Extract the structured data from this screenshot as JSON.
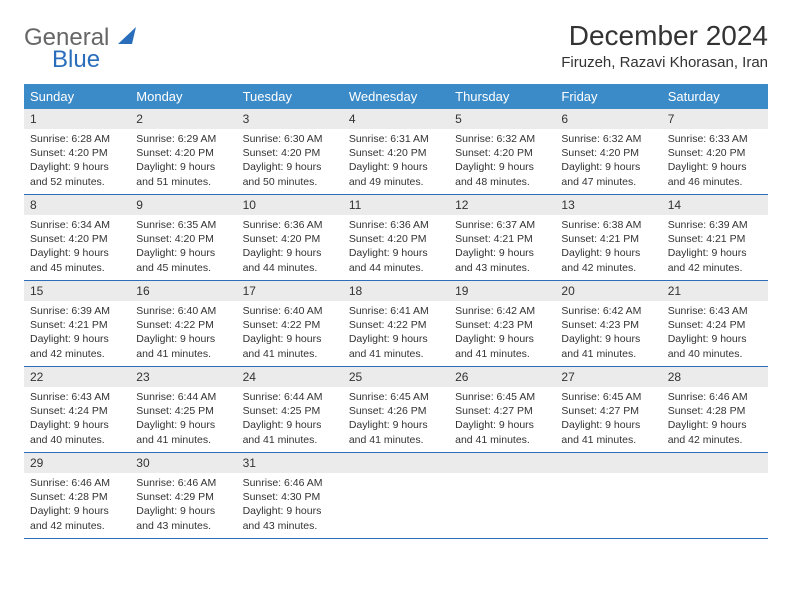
{
  "logo": {
    "text1": "General",
    "text2": "Blue",
    "sail_color": "#2a6ebb"
  },
  "title": "December 2024",
  "location": "Firuzeh, Razavi Khorasan, Iran",
  "day_headers": [
    "Sunday",
    "Monday",
    "Tuesday",
    "Wednesday",
    "Thursday",
    "Friday",
    "Saturday"
  ],
  "colors": {
    "header_bg": "#3b8bc9",
    "header_text": "#ffffff",
    "daynum_bg": "#ebebeb",
    "border": "#2a6ebb",
    "text": "#333333",
    "background": "#ffffff"
  },
  "weeks": [
    [
      {
        "n": "1",
        "sr": "Sunrise: 6:28 AM",
        "ss": "Sunset: 4:20 PM",
        "dl1": "Daylight: 9 hours",
        "dl2": "and 52 minutes."
      },
      {
        "n": "2",
        "sr": "Sunrise: 6:29 AM",
        "ss": "Sunset: 4:20 PM",
        "dl1": "Daylight: 9 hours",
        "dl2": "and 51 minutes."
      },
      {
        "n": "3",
        "sr": "Sunrise: 6:30 AM",
        "ss": "Sunset: 4:20 PM",
        "dl1": "Daylight: 9 hours",
        "dl2": "and 50 minutes."
      },
      {
        "n": "4",
        "sr": "Sunrise: 6:31 AM",
        "ss": "Sunset: 4:20 PM",
        "dl1": "Daylight: 9 hours",
        "dl2": "and 49 minutes."
      },
      {
        "n": "5",
        "sr": "Sunrise: 6:32 AM",
        "ss": "Sunset: 4:20 PM",
        "dl1": "Daylight: 9 hours",
        "dl2": "and 48 minutes."
      },
      {
        "n": "6",
        "sr": "Sunrise: 6:32 AM",
        "ss": "Sunset: 4:20 PM",
        "dl1": "Daylight: 9 hours",
        "dl2": "and 47 minutes."
      },
      {
        "n": "7",
        "sr": "Sunrise: 6:33 AM",
        "ss": "Sunset: 4:20 PM",
        "dl1": "Daylight: 9 hours",
        "dl2": "and 46 minutes."
      }
    ],
    [
      {
        "n": "8",
        "sr": "Sunrise: 6:34 AM",
        "ss": "Sunset: 4:20 PM",
        "dl1": "Daylight: 9 hours",
        "dl2": "and 45 minutes."
      },
      {
        "n": "9",
        "sr": "Sunrise: 6:35 AM",
        "ss": "Sunset: 4:20 PM",
        "dl1": "Daylight: 9 hours",
        "dl2": "and 45 minutes."
      },
      {
        "n": "10",
        "sr": "Sunrise: 6:36 AM",
        "ss": "Sunset: 4:20 PM",
        "dl1": "Daylight: 9 hours",
        "dl2": "and 44 minutes."
      },
      {
        "n": "11",
        "sr": "Sunrise: 6:36 AM",
        "ss": "Sunset: 4:20 PM",
        "dl1": "Daylight: 9 hours",
        "dl2": "and 44 minutes."
      },
      {
        "n": "12",
        "sr": "Sunrise: 6:37 AM",
        "ss": "Sunset: 4:21 PM",
        "dl1": "Daylight: 9 hours",
        "dl2": "and 43 minutes."
      },
      {
        "n": "13",
        "sr": "Sunrise: 6:38 AM",
        "ss": "Sunset: 4:21 PM",
        "dl1": "Daylight: 9 hours",
        "dl2": "and 42 minutes."
      },
      {
        "n": "14",
        "sr": "Sunrise: 6:39 AM",
        "ss": "Sunset: 4:21 PM",
        "dl1": "Daylight: 9 hours",
        "dl2": "and 42 minutes."
      }
    ],
    [
      {
        "n": "15",
        "sr": "Sunrise: 6:39 AM",
        "ss": "Sunset: 4:21 PM",
        "dl1": "Daylight: 9 hours",
        "dl2": "and 42 minutes."
      },
      {
        "n": "16",
        "sr": "Sunrise: 6:40 AM",
        "ss": "Sunset: 4:22 PM",
        "dl1": "Daylight: 9 hours",
        "dl2": "and 41 minutes."
      },
      {
        "n": "17",
        "sr": "Sunrise: 6:40 AM",
        "ss": "Sunset: 4:22 PM",
        "dl1": "Daylight: 9 hours",
        "dl2": "and 41 minutes."
      },
      {
        "n": "18",
        "sr": "Sunrise: 6:41 AM",
        "ss": "Sunset: 4:22 PM",
        "dl1": "Daylight: 9 hours",
        "dl2": "and 41 minutes."
      },
      {
        "n": "19",
        "sr": "Sunrise: 6:42 AM",
        "ss": "Sunset: 4:23 PM",
        "dl1": "Daylight: 9 hours",
        "dl2": "and 41 minutes."
      },
      {
        "n": "20",
        "sr": "Sunrise: 6:42 AM",
        "ss": "Sunset: 4:23 PM",
        "dl1": "Daylight: 9 hours",
        "dl2": "and 41 minutes."
      },
      {
        "n": "21",
        "sr": "Sunrise: 6:43 AM",
        "ss": "Sunset: 4:24 PM",
        "dl1": "Daylight: 9 hours",
        "dl2": "and 40 minutes."
      }
    ],
    [
      {
        "n": "22",
        "sr": "Sunrise: 6:43 AM",
        "ss": "Sunset: 4:24 PM",
        "dl1": "Daylight: 9 hours",
        "dl2": "and 40 minutes."
      },
      {
        "n": "23",
        "sr": "Sunrise: 6:44 AM",
        "ss": "Sunset: 4:25 PM",
        "dl1": "Daylight: 9 hours",
        "dl2": "and 41 minutes."
      },
      {
        "n": "24",
        "sr": "Sunrise: 6:44 AM",
        "ss": "Sunset: 4:25 PM",
        "dl1": "Daylight: 9 hours",
        "dl2": "and 41 minutes."
      },
      {
        "n": "25",
        "sr": "Sunrise: 6:45 AM",
        "ss": "Sunset: 4:26 PM",
        "dl1": "Daylight: 9 hours",
        "dl2": "and 41 minutes."
      },
      {
        "n": "26",
        "sr": "Sunrise: 6:45 AM",
        "ss": "Sunset: 4:27 PM",
        "dl1": "Daylight: 9 hours",
        "dl2": "and 41 minutes."
      },
      {
        "n": "27",
        "sr": "Sunrise: 6:45 AM",
        "ss": "Sunset: 4:27 PM",
        "dl1": "Daylight: 9 hours",
        "dl2": "and 41 minutes."
      },
      {
        "n": "28",
        "sr": "Sunrise: 6:46 AM",
        "ss": "Sunset: 4:28 PM",
        "dl1": "Daylight: 9 hours",
        "dl2": "and 42 minutes."
      }
    ],
    [
      {
        "n": "29",
        "sr": "Sunrise: 6:46 AM",
        "ss": "Sunset: 4:28 PM",
        "dl1": "Daylight: 9 hours",
        "dl2": "and 42 minutes."
      },
      {
        "n": "30",
        "sr": "Sunrise: 6:46 AM",
        "ss": "Sunset: 4:29 PM",
        "dl1": "Daylight: 9 hours",
        "dl2": "and 43 minutes."
      },
      {
        "n": "31",
        "sr": "Sunrise: 6:46 AM",
        "ss": "Sunset: 4:30 PM",
        "dl1": "Daylight: 9 hours",
        "dl2": "and 43 minutes."
      },
      {
        "empty": true
      },
      {
        "empty": true
      },
      {
        "empty": true
      },
      {
        "empty": true
      }
    ]
  ]
}
